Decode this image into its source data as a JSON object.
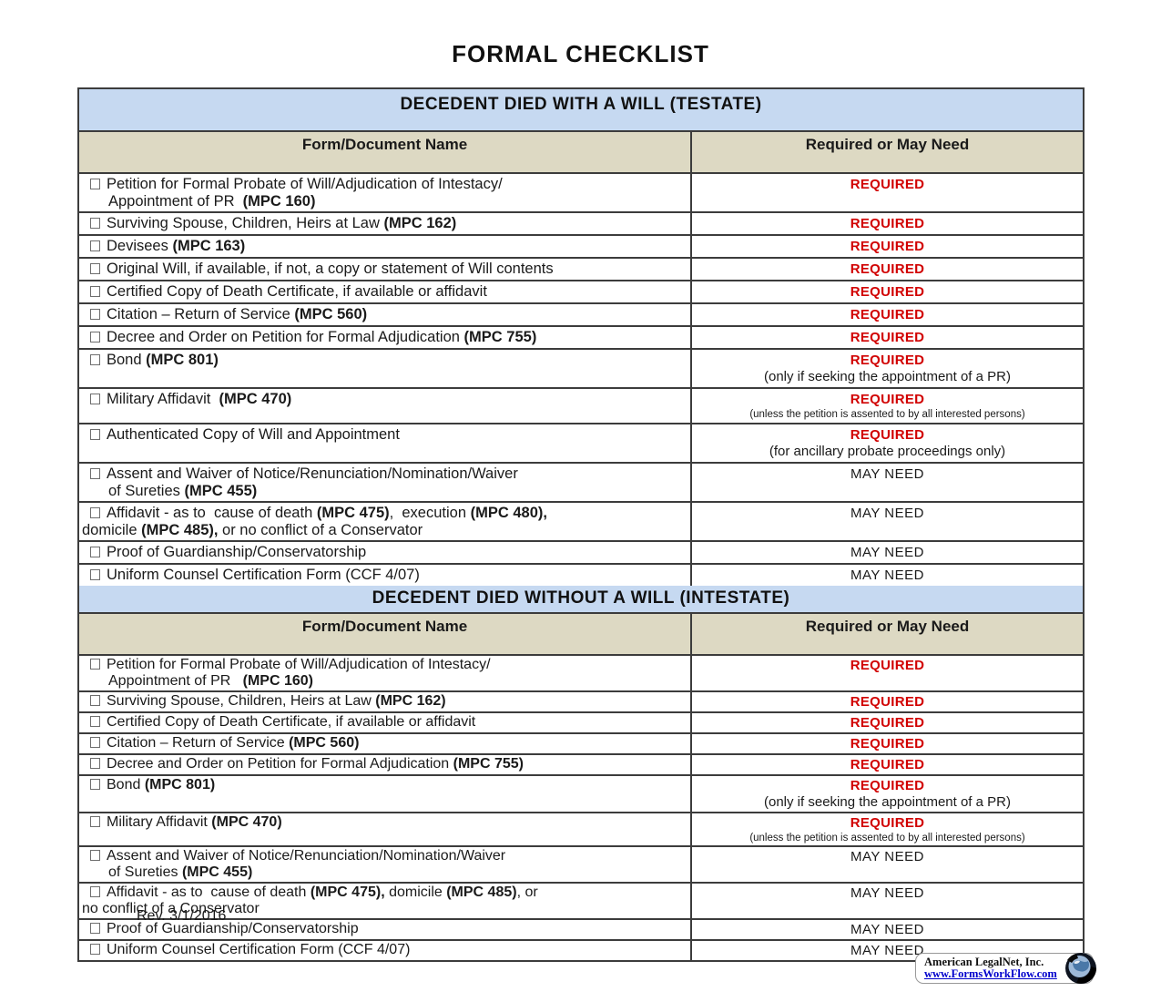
{
  "title": "FORMAL CHECKLIST",
  "rev": "Rev. 3/1/2016",
  "footer": {
    "company": "American LegalNet, Inc.",
    "url": "www.FormsWorkFlow.com"
  },
  "colors": {
    "required_red": "#d10000",
    "section_header_bg": "#c6d9f1",
    "column_header_bg": "#ddd9c3",
    "link_blue": "#0000cc"
  },
  "sections": [
    {
      "header": "DECEDENT DIED WITH A WILL (TESTATE)",
      "columns": [
        "Form/Document Name",
        "Required or May Need"
      ],
      "rows": [
        {
          "lines": [
            {
              "box": true,
              "parts": [
                {
                  "t": "Petition for Formal Probate of Will/Adjudication of Intestacy/"
                }
              ]
            },
            {
              "indent": true,
              "parts": [
                {
                  "t": "Appointment of PR  "
                },
                {
                  "t": "(MPC 160)",
                  "b": true
                }
              ]
            }
          ],
          "status": {
            "label": "REQUIRED",
            "type": "required"
          }
        },
        {
          "lines": [
            {
              "box": true,
              "parts": [
                {
                  "t": "Surviving Spouse, Children, Heirs at Law "
                },
                {
                  "t": "(MPC 162)",
                  "b": true
                }
              ]
            }
          ],
          "status": {
            "label": "REQUIRED",
            "type": "required"
          }
        },
        {
          "lines": [
            {
              "box": true,
              "parts": [
                {
                  "t": "Devisees "
                },
                {
                  "t": "(MPC 163)",
                  "b": true
                }
              ]
            }
          ],
          "status": {
            "label": "REQUIRED",
            "type": "required"
          }
        },
        {
          "lines": [
            {
              "box": true,
              "parts": [
                {
                  "t": "Original Will, if available, if not, a copy or statement of Will contents"
                }
              ]
            }
          ],
          "status": {
            "label": "REQUIRED",
            "type": "required"
          }
        },
        {
          "lines": [
            {
              "box": true,
              "parts": [
                {
                  "t": "Certified Copy of Death Certificate, if available or affidavit"
                }
              ]
            }
          ],
          "status": {
            "label": "REQUIRED",
            "type": "required"
          }
        },
        {
          "lines": [
            {
              "box": true,
              "parts": [
                {
                  "t": "Citation – Return of Service "
                },
                {
                  "t": "(MPC 560)",
                  "b": true
                }
              ]
            }
          ],
          "status": {
            "label": "REQUIRED",
            "type": "required"
          }
        },
        {
          "lines": [
            {
              "box": true,
              "parts": [
                {
                  "t": "Decree and Order on Petition for Formal Adjudication "
                },
                {
                  "t": "(MPC 755)",
                  "b": true
                }
              ]
            }
          ],
          "status": {
            "label": "REQUIRED",
            "type": "required"
          }
        },
        {
          "lines": [
            {
              "box": true,
              "parts": [
                {
                  "t": "Bond "
                },
                {
                  "t": "(MPC 801)",
                  "b": true
                }
              ]
            }
          ],
          "status": {
            "label": "REQUIRED",
            "type": "required",
            "note": "(only if seeking the appointment of a PR)"
          }
        },
        {
          "lines": [
            {
              "box": true,
              "parts": [
                {
                  "t": "Military Affidavit  "
                },
                {
                  "t": "(MPC 470)",
                  "b": true
                }
              ]
            }
          ],
          "status": {
            "label": "REQUIRED",
            "type": "required",
            "note": "(unless the petition is assented to by all interested persons)",
            "note_small": true
          }
        },
        {
          "lines": [
            {
              "box": true,
              "parts": [
                {
                  "t": "Authenticated Copy of Will and Appointment"
                }
              ]
            }
          ],
          "status": {
            "label": "REQUIRED",
            "type": "required",
            "note": "(for ancillary probate proceedings only)"
          }
        },
        {
          "lines": [
            {
              "box": true,
              "parts": [
                {
                  "t": "Assent and Waiver of Notice/Renunciation/Nomination/Waiver"
                }
              ]
            },
            {
              "indent": true,
              "parts": [
                {
                  "t": "of Sureties "
                },
                {
                  "t": "(MPC 455)",
                  "b": true
                }
              ]
            }
          ],
          "status": {
            "label": "MAY NEED",
            "type": "may_need"
          }
        },
        {
          "lines": [
            {
              "box": true,
              "parts": [
                {
                  "t": "Affidavit - as to  cause of death "
                },
                {
                  "t": "(MPC 475)",
                  "b": true
                },
                {
                  "t": ",  execution "
                },
                {
                  "t": "(MPC 480),",
                  "b": true
                }
              ]
            },
            {
              "flush": true,
              "parts": [
                {
                  "t": "domicile "
                },
                {
                  "t": "(MPC 485),",
                  "b": true
                },
                {
                  "t": " or no conflict of a Conservator"
                }
              ]
            }
          ],
          "status": {
            "label": "MAY NEED",
            "type": "may_need"
          }
        },
        {
          "lines": [
            {
              "box": true,
              "parts": [
                {
                  "t": "Proof of Guardianship/Conservatorship"
                }
              ]
            }
          ],
          "status": {
            "label": "MAY NEED",
            "type": "may_need"
          }
        },
        {
          "lines": [
            {
              "box": true,
              "parts": [
                {
                  "t": "Uniform Counsel Certification Form (CCF 4/07)"
                }
              ]
            }
          ],
          "status": {
            "label": "MAY NEED",
            "type": "may_need"
          }
        }
      ]
    },
    {
      "header": "DECEDENT DIED WITHOUT A WILL (INTESTATE)",
      "columns": [
        "Form/Document Name",
        "Required or May Need"
      ],
      "rows": [
        {
          "lines": [
            {
              "box": true,
              "parts": [
                {
                  "t": "Petition for Formal Probate of Will/Adjudication of Intestacy/"
                }
              ]
            },
            {
              "indent": true,
              "parts": [
                {
                  "t": "Appointment of PR   "
                },
                {
                  "t": "(MPC 160)",
                  "b": true
                }
              ]
            }
          ],
          "status": {
            "label": "REQUIRED",
            "type": "required"
          }
        },
        {
          "lines": [
            {
              "box": true,
              "parts": [
                {
                  "t": "Surviving Spouse, Children, Heirs at Law "
                },
                {
                  "t": "(MPC 162)",
                  "b": true
                }
              ]
            }
          ],
          "status": {
            "label": "REQUIRED",
            "type": "required"
          }
        },
        {
          "lines": [
            {
              "box": true,
              "parts": [
                {
                  "t": "Certified Copy of Death Certificate, if available or affidavit"
                }
              ]
            }
          ],
          "status": {
            "label": "REQUIRED",
            "type": "required"
          }
        },
        {
          "lines": [
            {
              "box": true,
              "parts": [
                {
                  "t": "Citation – Return of Service "
                },
                {
                  "t": "(MPC 560)",
                  "b": true
                }
              ]
            }
          ],
          "status": {
            "label": "REQUIRED",
            "type": "required"
          }
        },
        {
          "lines": [
            {
              "box": true,
              "parts": [
                {
                  "t": "Decree and Order on Petition for Formal Adjudication "
                },
                {
                  "t": "(MPC 755)",
                  "b": true
                }
              ]
            }
          ],
          "status": {
            "label": "REQUIRED",
            "type": "required"
          }
        },
        {
          "lines": [
            {
              "box": true,
              "parts": [
                {
                  "t": "Bond "
                },
                {
                  "t": "(MPC 801)",
                  "b": true
                }
              ]
            }
          ],
          "status": {
            "label": "REQUIRED",
            "type": "required",
            "note": "(only if seeking the appointment of a PR)"
          }
        },
        {
          "lines": [
            {
              "box": true,
              "parts": [
                {
                  "t": "Military Affidavit "
                },
                {
                  "t": "(MPC 470)",
                  "b": true
                }
              ]
            }
          ],
          "status": {
            "label": "REQUIRED",
            "type": "required",
            "note": "(unless the petition is assented to by all interested persons)",
            "note_small": true
          }
        },
        {
          "lines": [
            {
              "box": true,
              "parts": [
                {
                  "t": "Assent and Waiver of Notice/Renunciation/Nomination/Waiver"
                }
              ]
            },
            {
              "indent": true,
              "parts": [
                {
                  "t": "of Sureties "
                },
                {
                  "t": "(MPC 455)",
                  "b": true
                }
              ]
            }
          ],
          "status": {
            "label": "MAY NEED",
            "type": "may_need"
          }
        },
        {
          "lines": [
            {
              "box": true,
              "parts": [
                {
                  "t": "Affidavit - as to  cause of death "
                },
                {
                  "t": "(MPC 475),",
                  "b": true
                },
                {
                  "t": " domicile "
                },
                {
                  "t": "(MPC 485)",
                  "b": true
                },
                {
                  "t": ", or"
                }
              ]
            },
            {
              "flush": true,
              "parts": [
                {
                  "t": "no conflict of a Conservator"
                }
              ]
            }
          ],
          "status": {
            "label": "MAY NEED",
            "type": "may_need"
          }
        },
        {
          "lines": [
            {
              "box": true,
              "parts": [
                {
                  "t": "Proof of Guardianship/Conservatorship"
                }
              ]
            }
          ],
          "status": {
            "label": "MAY NEED",
            "type": "may_need"
          }
        },
        {
          "lines": [
            {
              "box": true,
              "parts": [
                {
                  "t": "Uniform Counsel Certification Form (CCF 4/07)"
                }
              ]
            }
          ],
          "status": {
            "label": "MAY NEED",
            "type": "may_need"
          }
        }
      ]
    }
  ]
}
